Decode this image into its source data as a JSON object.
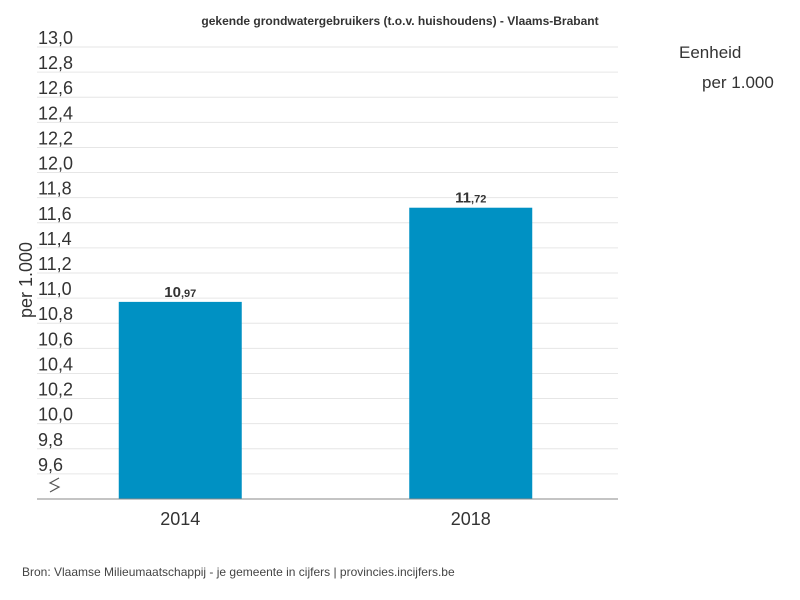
{
  "chart_data": {
    "type": "bar",
    "title": "gekende grondwatergebruikers (t.o.v. huishoudens) - Vlaams-Brabant",
    "ylabel": "per 1.000",
    "xlabel": "",
    "categories": [
      "2014",
      "2018"
    ],
    "values": [
      10.97,
      11.72
    ],
    "value_labels": [
      {
        "int": "10",
        "dec": ",97"
      },
      {
        "int": "11",
        "dec": ",72"
      }
    ],
    "ylim": [
      9.4,
      13.0
    ],
    "yticks": [
      9.6,
      9.8,
      10.0,
      10.2,
      10.4,
      10.6,
      10.8,
      11.0,
      11.2,
      11.4,
      11.6,
      11.8,
      12.0,
      12.2,
      12.4,
      12.6,
      12.8,
      13.0
    ],
    "ytick_labels": [
      "9,6",
      "9,8",
      "10,0",
      "10,2",
      "10,4",
      "10,6",
      "10,8",
      "11,0",
      "11,2",
      "11,4",
      "11,6",
      "11,8",
      "12,0",
      "12,2",
      "12,4",
      "12,6",
      "12,8",
      "13,0"
    ],
    "axis_break": true,
    "grid": true,
    "legend": "none",
    "colors": {
      "bar": "#0091c3"
    }
  },
  "unit": {
    "label": "Eenheid",
    "value": "per 1.000"
  },
  "source": "Bron: Vlaamse Milieumaatschappij - je gemeente in cijfers | provincies.incijfers.be"
}
